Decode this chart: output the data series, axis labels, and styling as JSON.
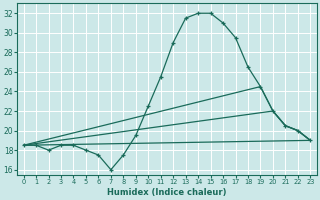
{
  "xlabel": "Humidex (Indice chaleur)",
  "xlim": [
    -0.5,
    23.5
  ],
  "ylim": [
    15.5,
    33
  ],
  "yticks": [
    16,
    18,
    20,
    22,
    24,
    26,
    28,
    30,
    32
  ],
  "xticks": [
    0,
    1,
    2,
    3,
    4,
    5,
    6,
    7,
    8,
    9,
    10,
    11,
    12,
    13,
    14,
    15,
    16,
    17,
    18,
    19,
    20,
    21,
    22,
    23
  ],
  "background_color": "#cce8e8",
  "grid_color": "#ffffff",
  "line_color": "#1a6b5a",
  "lines": [
    {
      "x": [
        0,
        1,
        2,
        3,
        4,
        5,
        6,
        7,
        8,
        9,
        10,
        11,
        12,
        13,
        14,
        15,
        16,
        17,
        18,
        19,
        20,
        21,
        22,
        23
      ],
      "y": [
        18.5,
        18.5,
        18.0,
        18.5,
        18.5,
        18.0,
        17.5,
        16.0,
        17.5,
        19.5,
        22.5,
        25.5,
        29.0,
        31.5,
        32.0,
        32.0,
        31.0,
        29.5,
        26.5,
        24.5,
        22.0,
        20.5,
        20.0,
        19.0
      ],
      "marker": true
    },
    {
      "x": [
        0,
        23
      ],
      "y": [
        18.5,
        19.0
      ],
      "marker": false
    },
    {
      "x": [
        0,
        20,
        21,
        22,
        23
      ],
      "y": [
        18.5,
        22.0,
        20.5,
        20.0,
        19.0
      ],
      "marker": false
    },
    {
      "x": [
        0,
        19,
        20,
        21,
        22,
        23
      ],
      "y": [
        18.5,
        24.5,
        22.0,
        20.5,
        20.0,
        19.0
      ],
      "marker": false
    }
  ]
}
